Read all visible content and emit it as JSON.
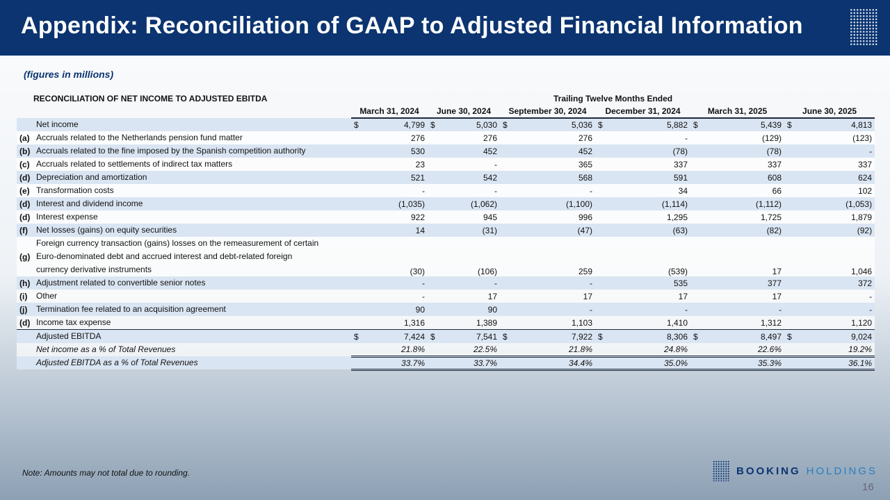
{
  "header": {
    "title": "Appendix: Reconciliation of GAAP to Adjusted Financial Information"
  },
  "subtitle": "(figures in millions)",
  "table": {
    "title": "RECONCILIATION OF NET INCOME TO ADJUSTED EBITDA",
    "group_header": "Trailing Twelve Months Ended",
    "currency": "$",
    "columns": [
      "March 31, 2024",
      "June 30, 2024",
      "September 30, 2024",
      "December 31, 2024",
      "March 31, 2025",
      "June 30, 2025"
    ],
    "rows": [
      {
        "label": "Net income",
        "dollar": true,
        "values": [
          "4,799",
          "5,030",
          "5,036",
          "5,882",
          "5,439",
          "4,813"
        ]
      },
      {
        "key": "(a)",
        "label": "Accruals related to the Netherlands pension fund matter",
        "values": [
          "276",
          "276",
          "276",
          "-",
          "(129)",
          "(123)"
        ]
      },
      {
        "key": "(b)",
        "label": "Accruals related to the fine imposed by the Spanish competition authority",
        "values": [
          "530",
          "452",
          "452",
          "(78)",
          "(78)",
          "-"
        ]
      },
      {
        "key": "(c)",
        "label": "Accruals related to settlements of indirect tax matters",
        "values": [
          "23",
          "-",
          "365",
          "337",
          "337",
          "337"
        ]
      },
      {
        "key": "(d)",
        "label": "Depreciation and amortization",
        "values": [
          "521",
          "542",
          "568",
          "591",
          "608",
          "624"
        ]
      },
      {
        "key": "(e)",
        "label": "Transformation costs",
        "values": [
          "-",
          "-",
          "-",
          "34",
          "66",
          "102"
        ]
      },
      {
        "key": "(d)",
        "label": "Interest and dividend income",
        "values": [
          "(1,035)",
          "(1,062)",
          "(1,100)",
          "(1,114)",
          "(1,112)",
          "(1,053)"
        ]
      },
      {
        "key": "(d)",
        "label": "Interest expense",
        "values": [
          "922",
          "945",
          "996",
          "1,295",
          "1,725",
          "1,879"
        ]
      },
      {
        "key": "(f)",
        "label": "Net losses (gains) on equity securities",
        "values": [
          "14",
          "(31)",
          "(47)",
          "(63)",
          "(82)",
          "(92)"
        ]
      },
      {
        "key": "(g)",
        "label": "Foreign currency transaction (gains) losses on the remeasurement of certain Euro-denominated debt and accrued interest and debt-related foreign currency derivative instruments",
        "values": [
          "(30)",
          "(106)",
          "259",
          "(539)",
          "17",
          "1,046"
        ]
      },
      {
        "key": "(h)",
        "label": "Adjustment related to convertible senior notes",
        "values": [
          "-",
          "-",
          "-",
          "535",
          "377",
          "372"
        ]
      },
      {
        "key": "(i)",
        "label": "Other",
        "values": [
          "-",
          "17",
          "17",
          "17",
          "17",
          "-"
        ]
      },
      {
        "key": "(j)",
        "label": "Termination fee related to an acquisition agreement",
        "values": [
          "90",
          "90",
          "-",
          "-",
          "-",
          "-"
        ]
      },
      {
        "key": "(d)",
        "label": "Income tax expense",
        "values": [
          "1,316",
          "1,389",
          "1,103",
          "1,410",
          "1,312",
          "1,120"
        ]
      },
      {
        "label": "Adjusted EBITDA",
        "dollar": true,
        "total": true,
        "values": [
          "7,424",
          "7,541",
          "7,922",
          "8,306",
          "8,497",
          "9,024"
        ]
      },
      {
        "label": "Net income as a % of Total Revenues",
        "percent": true,
        "values": [
          "21.8%",
          "22.5%",
          "21.8%",
          "24.8%",
          "22.6%",
          "19.2%"
        ]
      },
      {
        "label": "Adjusted EBITDA as a % of Total Revenues",
        "percent": true,
        "values": [
          "33.7%",
          "33.7%",
          "34.4%",
          "35.0%",
          "35.3%",
          "36.1%"
        ]
      }
    ]
  },
  "note": "Note: Amounts may not total due to rounding.",
  "logo": {
    "brand": "BOOKING",
    "suffix": "HOLDINGS"
  },
  "page_number": "16"
}
